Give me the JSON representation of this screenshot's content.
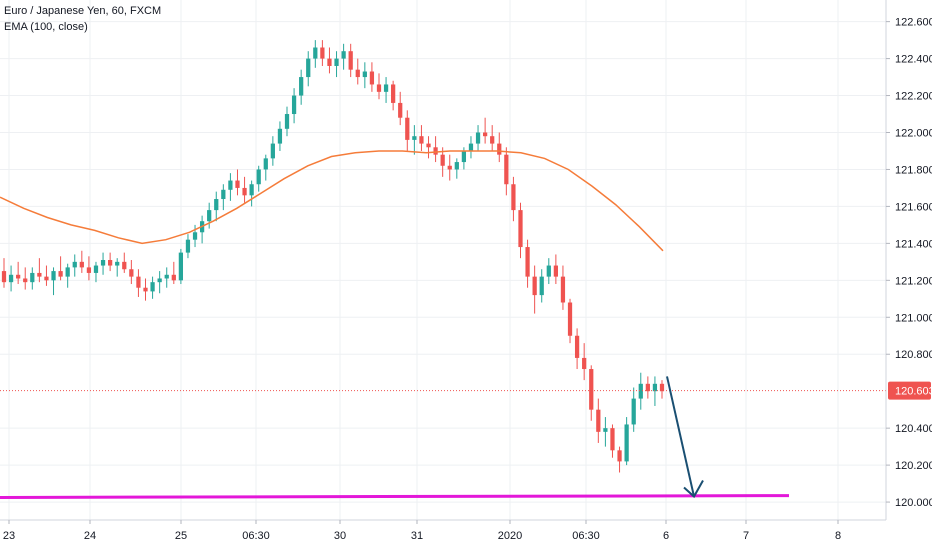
{
  "legend": {
    "symbol": "Euro / Japanese Yen, 60, FXCM",
    "indicator": "EMA (100, close)"
  },
  "colors": {
    "up": "#26a69a",
    "down": "#ef5350",
    "ema": "#f57c3a",
    "support": "#e317d9",
    "arrow": "#1a4f72",
    "price_label_bg": "#ef5350",
    "grid": "#eef0f3",
    "axis_text": "#131722"
  },
  "chart_data": {
    "type": "candlestick",
    "timeframe": "60",
    "x_tick_labels": [
      "23",
      "24",
      "25",
      "06:30",
      "30",
      "31",
      "2020",
      "06:30",
      "6",
      "7",
      "8"
    ],
    "y_tick_labels": [
      "122.600",
      "122.400",
      "122.200",
      "122.000",
      "121.800",
      "121.600",
      "121.400",
      "121.200",
      "121.000",
      "120.800",
      "120.400",
      "120.200",
      "120.000"
    ],
    "ylim": [
      119.93,
      122.69
    ],
    "grid": true,
    "current_price": "120.603",
    "candles": [
      [
        121.25,
        121.32,
        121.16,
        121.19
      ],
      [
        121.19,
        121.28,
        121.14,
        121.23
      ],
      [
        121.23,
        121.3,
        121.18,
        121.21
      ],
      [
        121.21,
        121.27,
        121.15,
        121.19
      ],
      [
        121.19,
        121.27,
        121.15,
        121.24
      ],
      [
        121.24,
        121.32,
        121.19,
        121.22
      ],
      [
        121.22,
        121.28,
        121.17,
        121.2
      ],
      [
        121.2,
        121.27,
        121.12,
        121.25
      ],
      [
        121.25,
        121.33,
        121.2,
        121.22
      ],
      [
        121.22,
        121.29,
        121.16,
        121.27
      ],
      [
        121.27,
        121.34,
        121.22,
        121.3
      ],
      [
        121.3,
        121.36,
        121.24,
        121.27
      ],
      [
        121.27,
        121.33,
        121.2,
        121.24
      ],
      [
        121.24,
        121.3,
        121.19,
        121.28
      ],
      [
        121.28,
        121.35,
        121.23,
        121.31
      ],
      [
        121.31,
        121.35,
        121.25,
        121.28
      ],
      [
        121.28,
        121.32,
        121.22,
        121.3
      ],
      [
        121.3,
        121.35,
        121.24,
        121.26
      ],
      [
        121.26,
        121.31,
        121.18,
        121.22
      ],
      [
        121.22,
        121.26,
        121.11,
        121.16
      ],
      [
        121.16,
        121.21,
        121.09,
        121.14
      ],
      [
        121.14,
        121.22,
        121.1,
        121.19
      ],
      [
        121.19,
        121.25,
        121.13,
        121.21
      ],
      [
        121.21,
        121.27,
        121.16,
        121.23
      ],
      [
        121.23,
        121.3,
        121.18,
        121.2
      ],
      [
        121.2,
        121.37,
        121.18,
        121.35
      ],
      [
        121.35,
        121.45,
        121.32,
        121.42
      ],
      [
        121.42,
        121.5,
        121.38,
        121.46
      ],
      [
        121.46,
        121.55,
        121.4,
        121.52
      ],
      [
        121.52,
        121.62,
        121.48,
        121.58
      ],
      [
        121.58,
        121.68,
        121.52,
        121.64
      ],
      [
        121.64,
        121.72,
        121.58,
        121.69
      ],
      [
        121.69,
        121.78,
        121.63,
        121.74
      ],
      [
        121.74,
        121.8,
        121.66,
        121.7
      ],
      [
        121.7,
        121.76,
        121.62,
        121.66
      ],
      [
        121.66,
        121.74,
        121.6,
        121.72
      ],
      [
        121.72,
        121.82,
        121.68,
        121.8
      ],
      [
        121.8,
        121.88,
        121.74,
        121.86
      ],
      [
        121.86,
        121.98,
        121.82,
        121.94
      ],
      [
        121.94,
        122.06,
        121.9,
        122.02
      ],
      [
        122.02,
        122.14,
        121.98,
        122.1
      ],
      [
        122.1,
        122.24,
        122.05,
        122.2
      ],
      [
        122.2,
        122.34,
        122.15,
        122.3
      ],
      [
        122.3,
        122.44,
        122.25,
        122.4
      ],
      [
        122.4,
        122.5,
        122.35,
        122.46
      ],
      [
        122.46,
        122.5,
        122.36,
        122.4
      ],
      [
        122.4,
        122.46,
        122.32,
        122.36
      ],
      [
        122.36,
        122.44,
        122.3,
        122.4
      ],
      [
        122.4,
        122.48,
        122.34,
        122.44
      ],
      [
        122.44,
        122.48,
        122.3,
        122.34
      ],
      [
        122.34,
        122.4,
        122.26,
        122.3
      ],
      [
        122.3,
        122.38,
        122.24,
        122.33
      ],
      [
        122.33,
        122.38,
        122.22,
        122.26
      ],
      [
        122.26,
        122.32,
        122.18,
        122.22
      ],
      [
        122.22,
        122.3,
        122.16,
        122.26
      ],
      [
        122.26,
        122.28,
        122.12,
        122.16
      ],
      [
        122.16,
        122.22,
        122.04,
        122.08
      ],
      [
        122.08,
        122.12,
        121.9,
        121.96
      ],
      [
        121.96,
        122.04,
        121.88,
        121.98
      ],
      [
        121.98,
        122.04,
        121.9,
        121.94
      ],
      [
        121.94,
        121.98,
        121.86,
        121.92
      ],
      [
        121.92,
        121.98,
        121.84,
        121.88
      ],
      [
        121.88,
        121.92,
        121.76,
        121.82
      ],
      [
        121.82,
        121.88,
        121.74,
        121.8
      ],
      [
        121.8,
        121.86,
        121.75,
        121.84
      ],
      [
        121.84,
        121.92,
        121.8,
        121.9
      ],
      [
        121.9,
        121.98,
        121.86,
        121.94
      ],
      [
        121.94,
        122.04,
        121.9,
        122.0
      ],
      [
        122.0,
        122.08,
        121.94,
        121.98
      ],
      [
        121.98,
        122.04,
        121.9,
        121.94
      ],
      [
        121.94,
        122.0,
        121.84,
        121.88
      ],
      [
        121.88,
        121.92,
        121.66,
        121.72
      ],
      [
        121.72,
        121.76,
        121.52,
        121.58
      ],
      [
        121.58,
        121.62,
        121.32,
        121.38
      ],
      [
        121.38,
        121.42,
        121.16,
        121.22
      ],
      [
        121.22,
        121.28,
        121.02,
        121.12
      ],
      [
        121.12,
        121.26,
        121.08,
        121.22
      ],
      [
        121.22,
        121.32,
        121.18,
        121.28
      ],
      [
        121.28,
        121.34,
        121.18,
        121.22
      ],
      [
        121.22,
        121.28,
        121.04,
        121.08
      ],
      [
        121.08,
        121.1,
        120.86,
        120.9
      ],
      [
        120.9,
        120.94,
        120.72,
        120.78
      ],
      [
        120.78,
        120.86,
        120.66,
        120.72
      ],
      [
        120.72,
        120.74,
        120.44,
        120.5
      ],
      [
        120.5,
        120.56,
        120.32,
        120.38
      ],
      [
        120.38,
        120.46,
        120.3,
        120.4
      ],
      [
        120.4,
        120.42,
        120.24,
        120.28
      ],
      [
        120.28,
        120.3,
        120.16,
        120.22
      ],
      [
        120.22,
        120.46,
        120.2,
        120.42
      ],
      [
        120.42,
        120.62,
        120.38,
        120.56
      ],
      [
        120.56,
        120.7,
        120.5,
        120.64
      ],
      [
        120.64,
        120.68,
        120.56,
        120.6
      ],
      [
        120.6,
        120.68,
        120.52,
        120.64
      ],
      [
        120.64,
        120.66,
        120.56,
        120.6
      ]
    ],
    "ema": [
      121.65,
      121.59,
      121.54,
      121.5,
      121.47,
      121.43,
      121.4,
      121.42,
      121.46,
      121.52,
      121.59,
      121.67,
      121.75,
      121.82,
      121.87,
      121.89,
      121.9,
      121.9,
      121.89,
      121.9,
      121.9,
      121.9,
      121.89,
      121.86,
      121.8,
      121.71,
      121.61,
      121.49,
      121.36
    ],
    "support_line": [
      120.025,
      120.035
    ],
    "forecast_arrow": {
      "from_price": 120.68,
      "to_price": 120.03,
      "note": "projected drop to support"
    }
  }
}
